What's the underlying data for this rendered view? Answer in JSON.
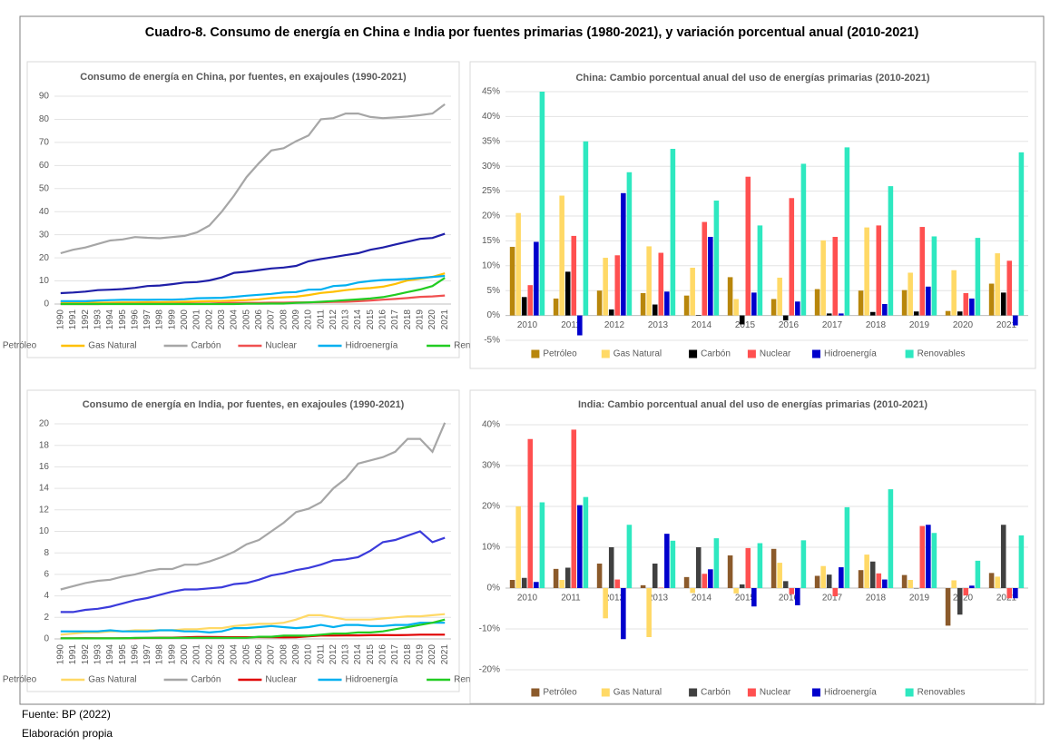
{
  "title": "Cuadro-8. Consumo de energía en China e India por fuentes primarias (1980-2021), y variación porcentual anual (2010-2021)",
  "source": "Fuente: BP (2022)",
  "credit": "Elaboración propia",
  "chart_data": [
    {
      "type": "line",
      "title": "Consumo de energía en China, por fuentes, en exajoules (1990-2021)",
      "categories": [
        "1990",
        "1991",
        "1992",
        "1993",
        "1994",
        "1995",
        "1996",
        "1997",
        "1998",
        "1999",
        "2000",
        "2001",
        "2002",
        "2003",
        "2004",
        "2005",
        "2006",
        "2007",
        "2008",
        "2009",
        "2010",
        "2011",
        "2012",
        "2013",
        "2014",
        "2015",
        "2016",
        "2017",
        "2018",
        "2019",
        "2020",
        "2021"
      ],
      "ylim": [
        0,
        90
      ],
      "yticks": [
        0,
        10,
        20,
        30,
        40,
        50,
        60,
        70,
        80,
        90
      ],
      "grid": true,
      "legend": "bottom",
      "series": [
        {
          "name": "Petróleo",
          "color": "#1f1fa8",
          "values": [
            4.7,
            5,
            5.4,
            6,
            6.2,
            6.5,
            7,
            7.8,
            8,
            8.6,
            9.3,
            9.5,
            10.2,
            11.5,
            13.5,
            14,
            14.7,
            15.4,
            15.8,
            16.5,
            18.5,
            19.5,
            20.3,
            21.2,
            22,
            23.5,
            24.5,
            25.8,
            27,
            28.2,
            28.6,
            30.4
          ]
        },
        {
          "name": "Gas Natural",
          "color": "#ffc000",
          "values": [
            0.6,
            0.6,
            0.6,
            0.6,
            0.6,
            0.7,
            0.7,
            0.8,
            0.8,
            0.9,
            1,
            1.1,
            1.2,
            1.3,
            1.5,
            1.7,
            2,
            2.6,
            2.9,
            3.2,
            3.9,
            4.8,
            5.3,
            6,
            6.6,
            6.9,
            7.5,
            8.7,
            10.2,
            11,
            11.8,
            13.3
          ]
        },
        {
          "name": "Carbón",
          "color": "#a6a6a6",
          "values": [
            22,
            23.5,
            24.5,
            26,
            27.5,
            28,
            29,
            28.7,
            28.5,
            29,
            29.5,
            31,
            34,
            40,
            47,
            55,
            61,
            66.5,
            67.5,
            70.5,
            73,
            80,
            80.5,
            82.5,
            82.5,
            81,
            80.5,
            80.8,
            81.2,
            81.8,
            82.5,
            86.5
          ]
        },
        {
          "name": "Nuclear",
          "color": "#f05050",
          "values": [
            0,
            0,
            0,
            0,
            0.1,
            0.1,
            0.1,
            0.1,
            0.1,
            0.1,
            0.2,
            0.2,
            0.2,
            0.4,
            0.5,
            0.5,
            0.5,
            0.6,
            0.6,
            0.7,
            0.7,
            0.8,
            0.9,
            1,
            1.2,
            1.5,
            1.9,
            2.2,
            2.6,
            3.1,
            3.3,
            3.7
          ]
        },
        {
          "name": "Hidroenergía",
          "color": "#00b0f0",
          "values": [
            1.2,
            1.2,
            1.2,
            1.5,
            1.7,
            1.8,
            1.8,
            1.8,
            1.9,
            1.9,
            2.1,
            2.5,
            2.6,
            2.7,
            3.1,
            3.6,
            4,
            4.4,
            5,
            5.2,
            6.2,
            6.3,
            7.8,
            8.1,
            9.3,
            10,
            10.4,
            10.6,
            10.9,
            11.3,
            11.7,
            12.2
          ]
        },
        {
          "name": "Renovables",
          "color": "#22cc22",
          "values": [
            0,
            0,
            0,
            0,
            0,
            0,
            0,
            0,
            0,
            0,
            0,
            0,
            0,
            0,
            0,
            0.1,
            0.1,
            0.2,
            0.2,
            0.5,
            0.7,
            1,
            1.3,
            1.7,
            2,
            2.4,
            3,
            4,
            5.2,
            6.3,
            7.8,
            11.3
          ]
        }
      ]
    },
    {
      "type": "bar",
      "title": "China: Cambio porcentual anual del uso de energías primarias (2010-2021)",
      "categories": [
        "2010",
        "2011",
        "2012",
        "2013",
        "2014",
        "2015",
        "2016",
        "2017",
        "2018",
        "2019",
        "2020",
        "2021"
      ],
      "ylim": [
        -5,
        45
      ],
      "yticks": [
        {
          "value": -5,
          "label": "-5%"
        },
        {
          "value": 0,
          "label": "0%"
        },
        {
          "value": 5,
          "label": "5%"
        },
        {
          "value": 10,
          "label": "10%"
        },
        {
          "value": 15,
          "label": "15%"
        },
        {
          "value": 20,
          "label": "20%"
        },
        {
          "value": 25,
          "label": "25%"
        },
        {
          "value": 30,
          "label": "30%"
        },
        {
          "value": 35,
          "label": "35%"
        },
        {
          "value": 40,
          "label": "40%"
        },
        {
          "value": 45,
          "label": "45%"
        }
      ],
      "grid": true,
      "legend": "bottom",
      "series": [
        {
          "name": "Petróleo",
          "color": "#b8860b",
          "values": [
            13.8,
            3.4,
            5,
            4.5,
            4,
            7.7,
            3.3,
            5.3,
            5,
            5.1,
            0.9,
            6.4
          ]
        },
        {
          "name": "Gas Natural",
          "color": "#ffd966",
          "values": [
            20.6,
            24.1,
            11.6,
            13.9,
            9.6,
            3.3,
            7.6,
            15.1,
            17.7,
            8.6,
            9.1,
            12.5
          ]
        },
        {
          "name": "Carbón",
          "color": "#000000",
          "values": [
            3.7,
            8.8,
            1.2,
            2.2,
            0.1,
            -1.8,
            -1,
            0.4,
            0.7,
            0.8,
            0.8,
            4.6
          ]
        },
        {
          "name": "Nuclear",
          "color": "#ff5050",
          "values": [
            6.1,
            16,
            12.1,
            12.6,
            18.8,
            27.9,
            23.6,
            15.8,
            18.1,
            17.8,
            4.5,
            11
          ]
        },
        {
          "name": "Hidroenergía",
          "color": "#0000cc",
          "values": [
            14.8,
            -4,
            24.6,
            4.8,
            15.8,
            4.6,
            2.8,
            0.4,
            2.3,
            5.8,
            3.4,
            -2
          ]
        },
        {
          "name": "Renovables",
          "color": "#2ee8c0",
          "values": [
            45,
            35,
            28.8,
            33.5,
            23.1,
            18.1,
            30.5,
            33.8,
            26,
            15.9,
            15.6,
            32.8
          ]
        }
      ]
    },
    {
      "type": "line",
      "title": "Consumo de energía en India, por fuentes, en exajoules (1990-2021)",
      "categories": [
        "1990",
        "1991",
        "1992",
        "1993",
        "1994",
        "1995",
        "1996",
        "1997",
        "1998",
        "1999",
        "2000",
        "2001",
        "2002",
        "2003",
        "2004",
        "2005",
        "2006",
        "2007",
        "2008",
        "2009",
        "2010",
        "2011",
        "2012",
        "2013",
        "2014",
        "2015",
        "2016",
        "2017",
        "2018",
        "2019",
        "2020",
        "2021"
      ],
      "ylim": [
        0,
        20
      ],
      "yticks": [
        0,
        2,
        4,
        6,
        8,
        10,
        12,
        14,
        16,
        18,
        20
      ],
      "grid": true,
      "legend": "bottom",
      "series": [
        {
          "name": "Petróleo",
          "color": "#3b3bdb",
          "values": [
            2.5,
            2.5,
            2.7,
            2.8,
            3,
            3.3,
            3.6,
            3.8,
            4.1,
            4.4,
            4.6,
            4.6,
            4.7,
            4.8,
            5.1,
            5.2,
            5.5,
            5.9,
            6.1,
            6.4,
            6.6,
            6.9,
            7.3,
            7.4,
            7.6,
            8.2,
            9,
            9.2,
            9.6,
            10,
            9,
            9.4
          ]
        },
        {
          "name": "Gas Natural",
          "color": "#ffd966",
          "values": [
            0.4,
            0.5,
            0.6,
            0.6,
            0.7,
            0.7,
            0.8,
            0.8,
            0.8,
            0.8,
            0.9,
            0.9,
            1,
            1,
            1.2,
            1.3,
            1.4,
            1.4,
            1.5,
            1.8,
            2.2,
            2.2,
            2,
            1.8,
            1.8,
            1.8,
            1.9,
            2,
            2.1,
            2.1,
            2.2,
            2.3
          ]
        },
        {
          "name": "Carbón",
          "color": "#a6a6a6",
          "values": [
            4.6,
            4.9,
            5.2,
            5.4,
            5.5,
            5.8,
            6,
            6.3,
            6.5,
            6.5,
            6.9,
            6.9,
            7.2,
            7.6,
            8.1,
            8.8,
            9.2,
            10,
            10.8,
            11.8,
            12.1,
            12.7,
            14,
            14.9,
            16.3,
            16.6,
            16.9,
            17.4,
            18.6,
            18.6,
            17.4,
            20.1
          ]
        },
        {
          "name": "Nuclear",
          "color": "#e00000",
          "values": [
            0.06,
            0.05,
            0.07,
            0.05,
            0.05,
            0.07,
            0.08,
            0.1,
            0.12,
            0.12,
            0.15,
            0.18,
            0.18,
            0.17,
            0.16,
            0.16,
            0.17,
            0.16,
            0.14,
            0.16,
            0.24,
            0.31,
            0.31,
            0.32,
            0.33,
            0.35,
            0.36,
            0.35,
            0.36,
            0.4,
            0.4,
            0.4
          ]
        },
        {
          "name": "Hidroenergía",
          "color": "#00b0f0",
          "values": [
            0.7,
            0.7,
            0.7,
            0.7,
            0.8,
            0.7,
            0.7,
            0.7,
            0.8,
            0.8,
            0.7,
            0.7,
            0.6,
            0.7,
            1,
            1,
            1.1,
            1.2,
            1.1,
            1,
            1.1,
            1.3,
            1.1,
            1.3,
            1.3,
            1.2,
            1.2,
            1.3,
            1.3,
            1.5,
            1.5,
            1.5
          ]
        },
        {
          "name": "Renovables",
          "color": "#22cc22",
          "values": [
            0.05,
            0.05,
            0.05,
            0.05,
            0.05,
            0.05,
            0.1,
            0.1,
            0.1,
            0.1,
            0.1,
            0.1,
            0.1,
            0.1,
            0.1,
            0.1,
            0.2,
            0.2,
            0.3,
            0.3,
            0.3,
            0.4,
            0.5,
            0.5,
            0.6,
            0.6,
            0.7,
            0.9,
            1.1,
            1.3,
            1.5,
            1.8
          ]
        }
      ]
    },
    {
      "type": "bar",
      "title": "India: Cambio porcentual anual del uso de energías primarias (2010-2021)",
      "categories": [
        "2010",
        "2011",
        "2012",
        "2013",
        "2014",
        "2015",
        "2016",
        "2017",
        "2018",
        "2019",
        "2020",
        "2021"
      ],
      "ylim": [
        -20,
        40
      ],
      "yticks": [
        {
          "value": -20,
          "label": "-20%"
        },
        {
          "value": -10,
          "label": "-10%"
        },
        {
          "value": 0,
          "label": "0%"
        },
        {
          "value": 10,
          "label": "10%"
        },
        {
          "value": 20,
          "label": "20%"
        },
        {
          "value": 30,
          "label": "30%"
        },
        {
          "value": 40,
          "label": "40%"
        }
      ],
      "grid": true,
      "legend": "bottom",
      "series": [
        {
          "name": "Petróleo",
          "color": "#8b5a2b",
          "values": [
            2,
            4.7,
            6,
            0.7,
            2.7,
            8,
            9.6,
            3,
            4.4,
            3.2,
            -9.2,
            3.7
          ]
        },
        {
          "name": "Gas Natural",
          "color": "#ffd966",
          "values": [
            20,
            2,
            -7.4,
            -12,
            -1.2,
            -1.3,
            6.2,
            5.4,
            8.2,
            2,
            1.9,
            2.8
          ]
        },
        {
          "name": "Carbón",
          "color": "#404040",
          "values": [
            2.5,
            5,
            10,
            6,
            10,
            0.9,
            1.7,
            3.3,
            6.5,
            0,
            -6.5,
            15.5
          ]
        },
        {
          "name": "Nuclear",
          "color": "#ff5050",
          "values": [
            36.5,
            38.8,
            2.1,
            0.1,
            3.5,
            9.8,
            -1.5,
            -2,
            3.6,
            15.2,
            -1.8,
            -2.5
          ]
        },
        {
          "name": "Hidroenergía",
          "color": "#0000cc",
          "values": [
            1.5,
            20.3,
            -12.5,
            13.3,
            4.6,
            -4.5,
            -4.2,
            5.1,
            2.1,
            15.5,
            0.6,
            -2.5
          ]
        },
        {
          "name": "Renovables",
          "color": "#2ee8c0",
          "values": [
            21,
            22.3,
            15.5,
            11.6,
            12.2,
            11,
            11.7,
            19.8,
            24.2,
            13.5,
            6.7,
            12.9
          ]
        }
      ]
    }
  ]
}
